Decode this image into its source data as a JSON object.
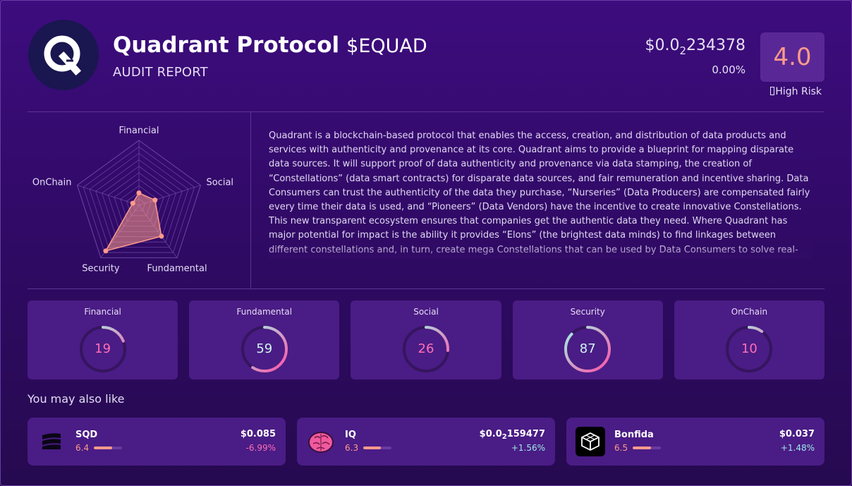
{
  "project": {
    "name": "Quadrant Protocol",
    "ticker": "$EQUAD",
    "subtitle": "AUDIT REPORT",
    "logo_icon": "q-logo-icon",
    "price_prefix": "$0.0",
    "price_zeros": "2",
    "price_rest": "234378",
    "change": "0.00%",
    "score": "4.0",
    "risk_label": "High Risk",
    "risk_icon": "warning-icon"
  },
  "radar": {
    "axes": [
      "Financial",
      "Social",
      "Fundamental",
      "Security",
      "OnChain"
    ],
    "values": [
      19,
      26,
      59,
      87,
      10
    ],
    "max": 100,
    "rings": 10,
    "fill_color": "#ff9b8a"
  },
  "description": "Quadrant is a blockchain-based protocol that enables the access, creation, and distribution of data products and services with authenticity and provenance at its core. Quadrant aims to provide a blueprint for mapping disparate data sources. It will support proof of data authenticity and provenance via data stamping, the creation of “Constellations” (data smart contracts) for disparate data sources, and fair remuneration and incentive sharing. Data Consumers can trust the authenticity of the data they purchase, “Nurseries” (Data Producers) are compensated fairly every time their data is used, and “Pioneers” (Data Vendors) have the incentive to create innovative Constellations. This new transparent ecosystem ensures that companies get the authentic data they need. Where Quadrant has major potential for impact is the ability it provides “Elons” (the brightest data minds) to find linkages between different constellations and, in turn, create mega Constellations that can be used by Data Consumers to solve real-world problems. This is where Quadrant differentiate...",
  "scores": [
    {
      "label": "Financial",
      "value": 19,
      "display": "19"
    },
    {
      "label": "Fundamental",
      "value": 59,
      "display": "59"
    },
    {
      "label": "Social",
      "value": 26,
      "display": "26"
    },
    {
      "label": "Security",
      "value": 87,
      "display": "87"
    },
    {
      "label": "OnChain",
      "value": 10,
      "display": "10"
    }
  ],
  "colors": {
    "gauge_pink": "#ff4fa8",
    "gauge_cyan": "#9ff5e6",
    "gauge_track": "#35155f",
    "negative": "#ff6fb5",
    "positive": "#9ee8e8",
    "accent": "#ff9b8a"
  },
  "also_like": {
    "heading": "You may also like",
    "items": [
      {
        "name": "SQD",
        "icon": "sqd-logo-icon",
        "score": "6.4",
        "score_value": 6.4,
        "price": "$0.085",
        "price_zeros": "",
        "price_rest": "",
        "change": "-6.99%",
        "direction": "negative"
      },
      {
        "name": "IQ",
        "icon": "brain-logo-icon",
        "score": "6.3",
        "score_value": 6.3,
        "price": "$0.0",
        "price_zeros": "2",
        "price_rest": "159477",
        "change": "+1.56%",
        "direction": "positive"
      },
      {
        "name": "Bonfida",
        "icon": "cube-logo-icon",
        "score": "6.5",
        "score_value": 6.5,
        "price": "$0.037",
        "price_zeros": "",
        "price_rest": "",
        "change": "+1.48%",
        "direction": "positive"
      }
    ]
  }
}
